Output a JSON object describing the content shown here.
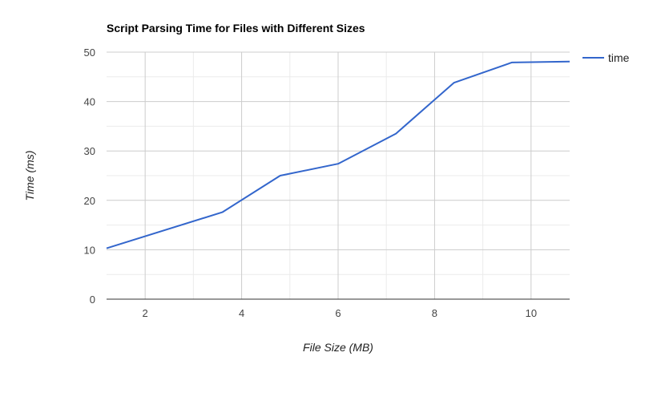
{
  "chart_data": {
    "type": "line",
    "title": "Script Parsing Time for Files with Different Sizes",
    "xlabel": "File Size (MB)",
    "ylabel": "Time (ms)",
    "xlim": [
      1.2,
      10.8
    ],
    "ylim": [
      0,
      50
    ],
    "x_ticks": [
      2,
      4,
      6,
      8,
      10
    ],
    "y_ticks": [
      0,
      10,
      20,
      30,
      40,
      50
    ],
    "grid": true,
    "legend_position": "right",
    "series": [
      {
        "name": "time",
        "color": "#3366cc",
        "x": [
          1.2,
          3.6,
          4.8,
          6.0,
          7.2,
          8.4,
          9.6,
          10.8
        ],
        "y": [
          10.3,
          17.6,
          25.0,
          27.4,
          33.5,
          43.8,
          47.9,
          48.1
        ]
      }
    ]
  }
}
